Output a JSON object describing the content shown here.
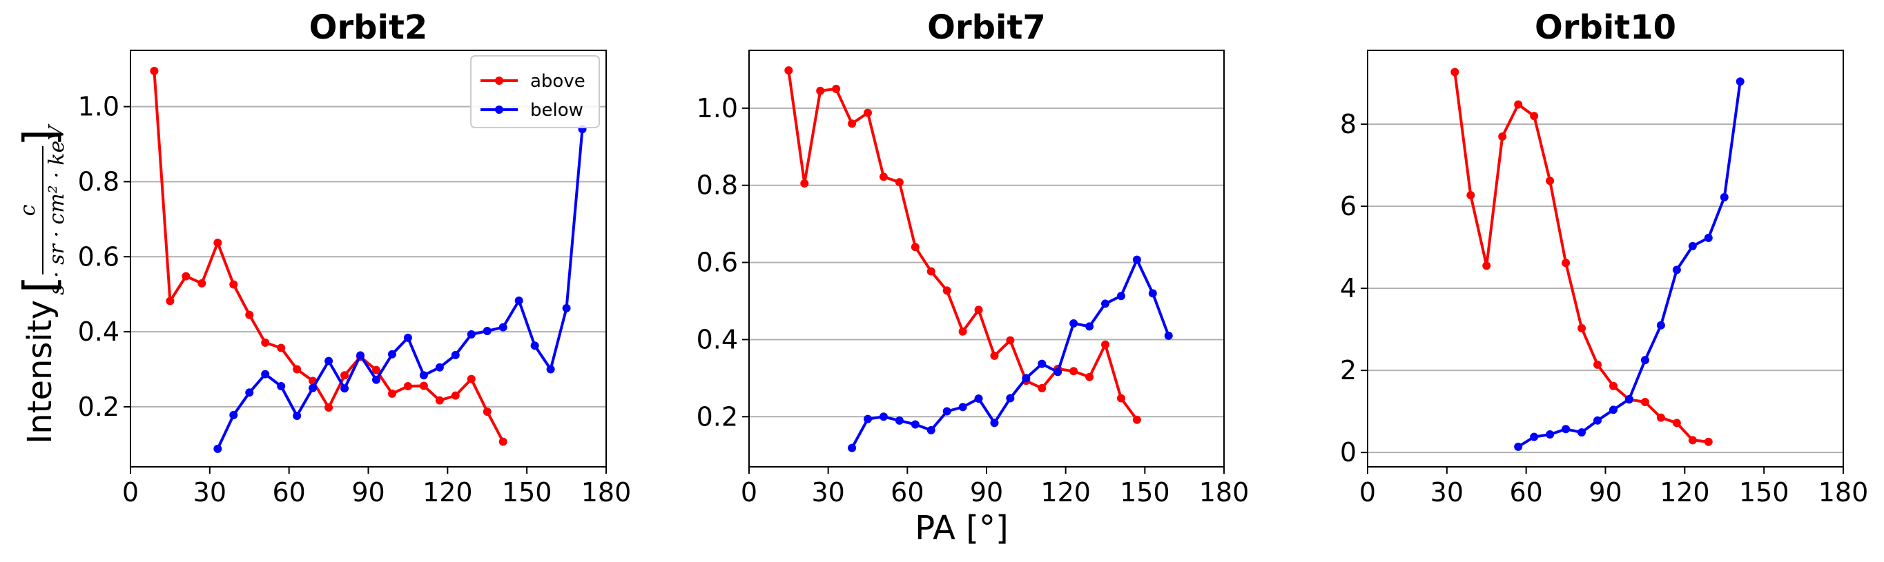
{
  "figure": {
    "xlabel": "PA [°]",
    "ylabel": "Intensity",
    "ylabel_unit_numerator": "c",
    "ylabel_unit_denominator": "s · sr · cm² · keV"
  },
  "chart_data": [
    {
      "type": "line",
      "title": "Orbit2",
      "xlabel": "",
      "ylabel": "Intensity [c / (s·sr·cm²·keV)]",
      "xlim": [
        0,
        180
      ],
      "ylim": [
        0.04,
        1.15
      ],
      "xticks": [
        0,
        30,
        60,
        90,
        120,
        150,
        180
      ],
      "yticks": [
        0.2,
        0.4,
        0.6,
        0.8,
        1.0
      ],
      "ytick_labels": [
        "0.2",
        "0.4",
        "0.6",
        "0.8",
        "1.0"
      ],
      "grid": "horizontal",
      "legend": "top-right",
      "series": [
        {
          "name": "above",
          "color": "#ff0000",
          "points": [
            [
              9,
              1.095
            ],
            [
              15,
              0.482
            ],
            [
              21,
              0.548
            ],
            [
              27,
              0.529
            ],
            [
              33,
              0.637
            ],
            [
              39,
              0.526
            ],
            [
              45,
              0.445
            ],
            [
              51,
              0.371
            ],
            [
              57,
              0.357
            ],
            [
              63,
              0.3
            ],
            [
              69,
              0.269
            ],
            [
              75,
              0.198
            ],
            [
              81,
              0.284
            ],
            [
              87,
              0.333
            ],
            [
              93,
              0.298
            ],
            [
              99,
              0.235
            ],
            [
              105,
              0.255
            ],
            [
              111,
              0.256
            ],
            [
              117,
              0.217
            ],
            [
              123,
              0.23
            ],
            [
              129,
              0.274
            ],
            [
              135,
              0.187
            ],
            [
              141,
              0.107
            ]
          ]
        },
        {
          "name": "below",
          "color": "#0000ff",
          "points": [
            [
              33,
              0.088
            ],
            [
              39,
              0.178
            ],
            [
              45,
              0.238
            ],
            [
              51,
              0.287
            ],
            [
              57,
              0.255
            ],
            [
              63,
              0.176
            ],
            [
              69,
              0.25
            ],
            [
              75,
              0.322
            ],
            [
              81,
              0.249
            ],
            [
              87,
              0.337
            ],
            [
              93,
              0.272
            ],
            [
              99,
              0.34
            ],
            [
              105,
              0.384
            ],
            [
              111,
              0.284
            ],
            [
              117,
              0.305
            ],
            [
              123,
              0.338
            ],
            [
              129,
              0.393
            ],
            [
              135,
              0.402
            ],
            [
              141,
              0.412
            ],
            [
              147,
              0.483
            ],
            [
              153,
              0.363
            ],
            [
              159,
              0.3
            ],
            [
              165,
              0.463
            ],
            [
              171,
              0.94
            ]
          ]
        }
      ]
    },
    {
      "type": "line",
      "title": "Orbit7",
      "xlabel": "PA [°]",
      "ylabel": "",
      "xlim": [
        0,
        180
      ],
      "ylim": [
        0.07,
        1.15
      ],
      "xticks": [
        0,
        30,
        60,
        90,
        120,
        150,
        180
      ],
      "yticks": [
        0.2,
        0.4,
        0.6,
        0.8,
        1.0
      ],
      "ytick_labels": [
        "0.2",
        "0.4",
        "0.6",
        "0.8",
        "1.0"
      ],
      "grid": "horizontal",
      "legend": "none",
      "series": [
        {
          "name": "above",
          "color": "#ff0000",
          "points": [
            [
              15,
              1.098
            ],
            [
              21,
              0.805
            ],
            [
              27,
              1.045
            ],
            [
              33,
              1.05
            ],
            [
              39,
              0.96
            ],
            [
              45,
              0.988
            ],
            [
              51,
              0.822
            ],
            [
              57,
              0.808
            ],
            [
              63,
              0.64
            ],
            [
              69,
              0.577
            ],
            [
              75,
              0.527
            ],
            [
              81,
              0.421
            ],
            [
              87,
              0.477
            ],
            [
              93,
              0.358
            ],
            [
              99,
              0.398
            ],
            [
              105,
              0.293
            ],
            [
              111,
              0.274
            ],
            [
              117,
              0.324
            ],
            [
              123,
              0.318
            ],
            [
              129,
              0.303
            ],
            [
              135,
              0.387
            ],
            [
              141,
              0.248
            ],
            [
              147,
              0.192
            ]
          ]
        },
        {
          "name": "below",
          "color": "#0000ff",
          "points": [
            [
              39,
              0.119
            ],
            [
              45,
              0.194
            ],
            [
              51,
              0.2
            ],
            [
              57,
              0.19
            ],
            [
              63,
              0.18
            ],
            [
              69,
              0.165
            ],
            [
              75,
              0.214
            ],
            [
              81,
              0.225
            ],
            [
              87,
              0.247
            ],
            [
              93,
              0.184
            ],
            [
              99,
              0.248
            ],
            [
              105,
              0.3
            ],
            [
              111,
              0.337
            ],
            [
              117,
              0.316
            ],
            [
              123,
              0.442
            ],
            [
              129,
              0.434
            ],
            [
              135,
              0.493
            ],
            [
              141,
              0.513
            ],
            [
              147,
              0.607
            ],
            [
              153,
              0.52
            ],
            [
              159,
              0.41
            ]
          ]
        }
      ]
    },
    {
      "type": "line",
      "title": "Orbit10",
      "xlabel": "",
      "ylabel": "",
      "xlim": [
        0,
        180
      ],
      "ylim": [
        -0.35,
        9.8
      ],
      "xticks": [
        0,
        30,
        60,
        90,
        120,
        150,
        180
      ],
      "yticks": [
        0,
        2,
        4,
        6,
        8
      ],
      "ytick_labels": [
        "0",
        "2",
        "4",
        "6",
        "8"
      ],
      "grid": "horizontal",
      "legend": "none",
      "series": [
        {
          "name": "above",
          "color": "#ff0000",
          "points": [
            [
              33,
              9.27
            ],
            [
              39,
              6.27
            ],
            [
              45,
              4.55
            ],
            [
              51,
              7.7
            ],
            [
              57,
              8.48
            ],
            [
              63,
              8.2
            ],
            [
              69,
              6.62
            ],
            [
              75,
              4.62
            ],
            [
              81,
              3.03
            ],
            [
              87,
              2.14
            ],
            [
              93,
              1.62
            ],
            [
              99,
              1.29
            ],
            [
              105,
              1.23
            ],
            [
              111,
              0.85
            ],
            [
              117,
              0.72
            ],
            [
              123,
              0.3
            ],
            [
              129,
              0.26
            ]
          ]
        },
        {
          "name": "below",
          "color": "#0000ff",
          "points": [
            [
              57,
              0.14
            ],
            [
              63,
              0.38
            ],
            [
              69,
              0.44
            ],
            [
              75,
              0.57
            ],
            [
              81,
              0.49
            ],
            [
              87,
              0.78
            ],
            [
              93,
              1.04
            ],
            [
              99,
              1.3
            ],
            [
              105,
              2.25
            ],
            [
              111,
              3.1
            ],
            [
              117,
              4.45
            ],
            [
              123,
              5.03
            ],
            [
              129,
              5.23
            ],
            [
              135,
              6.22
            ],
            [
              141,
              9.04
            ]
          ]
        }
      ]
    }
  ]
}
